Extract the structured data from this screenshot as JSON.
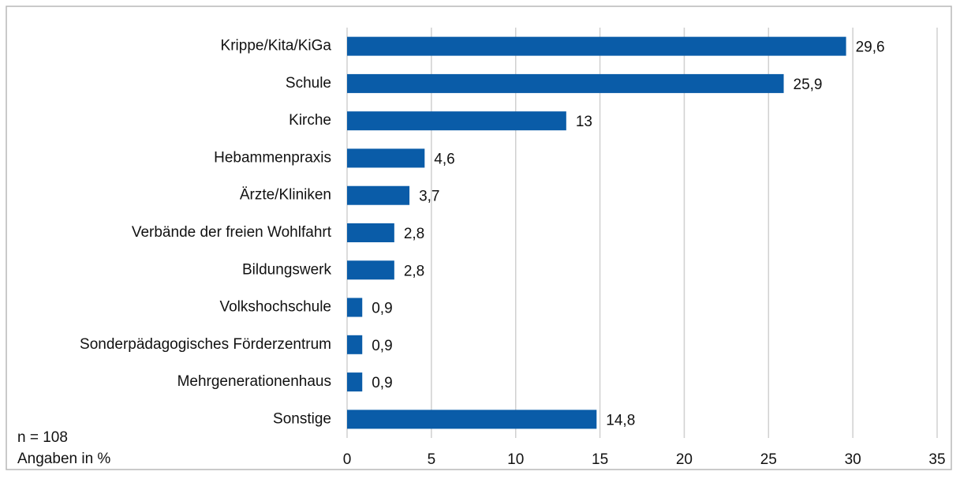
{
  "chart_data": {
    "type": "barh",
    "categories": [
      "Krippe/Kita/KiGa",
      "Schule",
      "Kirche",
      "Hebammenpraxis",
      "Ärzte/Kliniken",
      "Verbände der freien Wohlfahrt",
      "Bildungswerk",
      "Volkshochschule",
      "Sonderpädagogisches Förderzentrum",
      "Mehrgenerationenhaus",
      "Sonstige"
    ],
    "values": [
      29.6,
      25.9,
      13,
      4.6,
      3.7,
      2.8,
      2.8,
      0.9,
      0.9,
      0.9,
      14.8
    ],
    "value_labels": [
      "29,6",
      "25,9",
      "13",
      "4,6",
      "3,7",
      "2,8",
      "2,8",
      "0,9",
      "0,9",
      "0,9",
      "14,8"
    ],
    "color": "#0a5ca8",
    "xlim": [
      0,
      35
    ],
    "xticks": [
      0,
      5,
      10,
      15,
      20,
      25,
      30,
      35
    ],
    "grid": true,
    "annotations": [
      "n = 108",
      "Angaben in %"
    ]
  }
}
